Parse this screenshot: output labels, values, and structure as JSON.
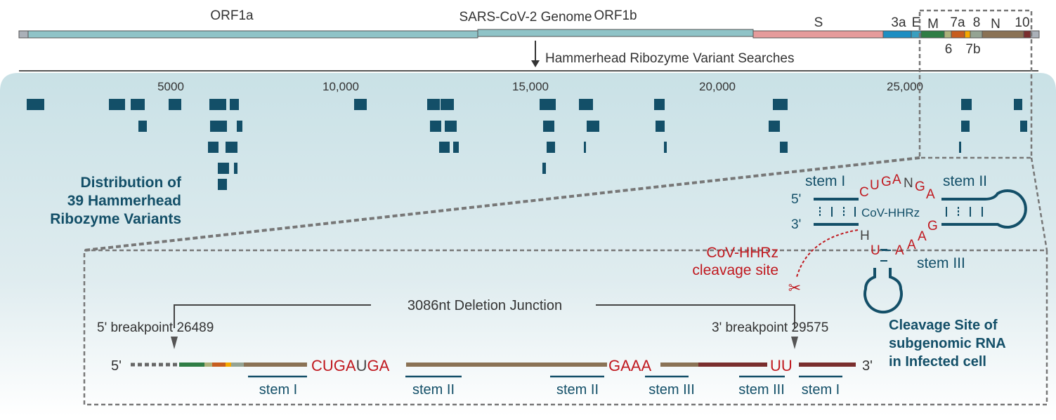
{
  "genome": {
    "title": "SARS-CoV-2 Genome",
    "genes": [
      {
        "label": "ORF1a",
        "color": "#8fc3c7"
      },
      {
        "label": "ORF1b",
        "color": "#8fc3c7"
      },
      {
        "label": "S",
        "color": "#e59b9b"
      },
      {
        "label": "3a",
        "color": "#1e8ec2"
      },
      {
        "label": "E",
        "color": "#3a9fbf"
      },
      {
        "label": "M",
        "color": "#2f7d45"
      },
      {
        "label": "6",
        "color": "#adb07a"
      },
      {
        "label": "7a",
        "color": "#c75d1f"
      },
      {
        "label": "7b",
        "color": "#f5a800"
      },
      {
        "label": "8",
        "color": "#94a393"
      },
      {
        "label": "N",
        "color": "#8a7255"
      },
      {
        "label": "10",
        "color": "#7a2e2e"
      }
    ],
    "search_label": "Hammerhead Ribozyme Variant Searches"
  },
  "axis": {
    "ticks": [
      "5000",
      "10,000",
      "15,000",
      "20,000",
      "25,000"
    ]
  },
  "distribution": {
    "title_lines": [
      "Distribution of",
      "39 Hammerhead",
      "Ribozyme Variants"
    ],
    "count": 39,
    "color": "#134f68"
  },
  "ribozyme": {
    "stem1": "stem I",
    "stem2": "stem II",
    "stem3": "stem III",
    "five": "5'",
    "three": "3'",
    "name": "CoV-HHRz",
    "core_top": [
      "C",
      "U",
      "G",
      "A",
      "N",
      "G",
      "A"
    ],
    "core_bottom": [
      "H",
      "U",
      "A",
      "A",
      "A",
      "G"
    ],
    "cleavage_label": [
      "CoV-HHRz",
      "cleavage site"
    ]
  },
  "junction": {
    "label": "3086nt Deletion Junction",
    "left": "5' breakpoint 26489",
    "right": "3' breakpoint 29575",
    "seq1": "CUGA",
    "seq1b": "U",
    "seq1c": "GA",
    "seq2": "GAAA",
    "seq3": "UU",
    "five": "5'",
    "three": "3'",
    "stems": [
      "stem I",
      "stem II",
      "stem II",
      "stem III",
      "stem III",
      "stem I"
    ],
    "caption": [
      "Cleavage Site of",
      "subgenomic RNA",
      "in Infected cell"
    ]
  },
  "colors": {
    "accent": "#c0191f",
    "dark": "#134f68",
    "gray": "#555555"
  }
}
